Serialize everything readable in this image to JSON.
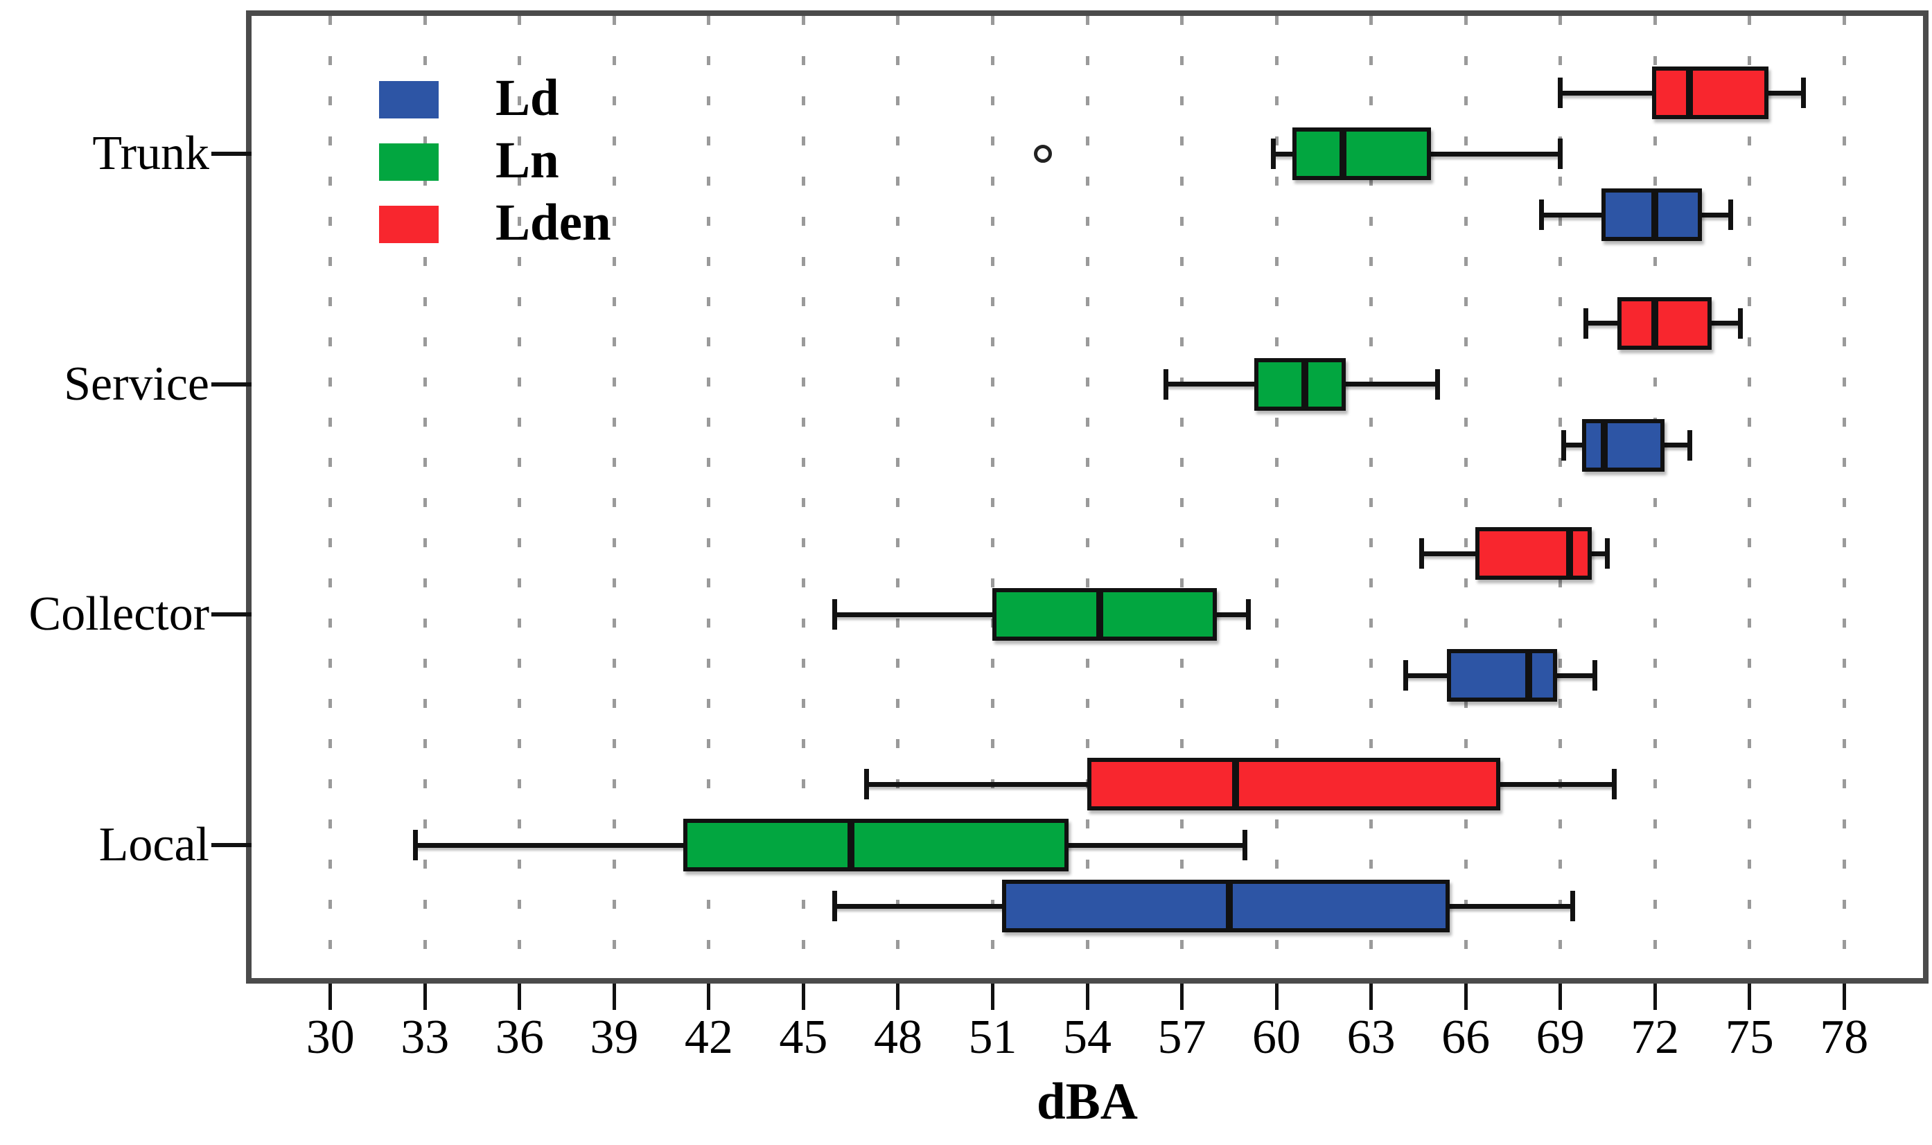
{
  "chart_data": {
    "type": "boxplot",
    "orientation": "horizontal",
    "title": "",
    "xlabel": "dBA",
    "x_ticks": [
      30,
      33,
      36,
      39,
      42,
      45,
      48,
      51,
      54,
      57,
      60,
      63,
      66,
      69,
      72,
      75,
      78
    ],
    "x_range_at_plot_edges": [
      27.5,
      80.5
    ],
    "grid": "vertical dashed gray lines at every tick",
    "legend_position": "top-left inside plot",
    "categories": [
      "Trunk",
      "Service",
      "Collector",
      "Local"
    ],
    "row_order_within_group_top_to_bottom": [
      "Lden",
      "Ln",
      "Ld"
    ],
    "legend": [
      {
        "label": "Ld",
        "color": "#2d55a5"
      },
      {
        "label": "Ln",
        "color": "#02a640"
      },
      {
        "label": "Lden",
        "color": "#f8262e"
      }
    ],
    "colors": {
      "Ld": "#2d55a5",
      "Ln": "#02a640",
      "Lden": "#f8262e",
      "box_border": "#111111",
      "grid": "#9a9a9a",
      "frame": "#4b4b4b"
    },
    "boxes": [
      {
        "category": "Trunk",
        "series": "Lden",
        "low": 69.0,
        "q1": 71.9,
        "median": 73.1,
        "q3": 75.6,
        "high": 76.7,
        "outliers": []
      },
      {
        "category": "Trunk",
        "series": "Ln",
        "low": 59.9,
        "q1": 60.5,
        "median": 62.1,
        "q3": 64.9,
        "high": 69.0,
        "outliers": [
          52.6
        ]
      },
      {
        "category": "Trunk",
        "series": "Ld",
        "low": 68.4,
        "q1": 70.3,
        "median": 72.0,
        "q3": 73.5,
        "high": 74.4,
        "outliers": []
      },
      {
        "category": "Service",
        "series": "Lden",
        "low": 69.8,
        "q1": 70.8,
        "median": 72.0,
        "q3": 73.8,
        "high": 74.7,
        "outliers": []
      },
      {
        "category": "Service",
        "series": "Ln",
        "low": 56.5,
        "q1": 59.3,
        "median": 60.9,
        "q3": 62.2,
        "high": 65.1,
        "outliers": []
      },
      {
        "category": "Service",
        "series": "Ld",
        "low": 69.1,
        "q1": 69.7,
        "median": 70.4,
        "q3": 72.3,
        "high": 73.1,
        "outliers": []
      },
      {
        "category": "Collector",
        "series": "Lden",
        "low": 64.6,
        "q1": 66.3,
        "median": 69.3,
        "q3": 70.0,
        "high": 70.5,
        "outliers": []
      },
      {
        "category": "Collector",
        "series": "Ln",
        "low": 46.0,
        "q1": 51.0,
        "median": 54.4,
        "q3": 58.1,
        "high": 59.1,
        "outliers": []
      },
      {
        "category": "Collector",
        "series": "Ld",
        "low": 64.1,
        "q1": 65.4,
        "median": 68.0,
        "q3": 68.9,
        "high": 70.1,
        "outliers": []
      },
      {
        "category": "Local",
        "series": "Lden",
        "low": 47.0,
        "q1": 54.0,
        "median": 58.7,
        "q3": 67.1,
        "high": 70.7,
        "outliers": []
      },
      {
        "category": "Local",
        "series": "Ln",
        "low": 32.7,
        "q1": 41.2,
        "median": 46.5,
        "q3": 53.4,
        "high": 59.0,
        "outliers": []
      },
      {
        "category": "Local",
        "series": "Ld",
        "low": 46.0,
        "q1": 51.3,
        "median": 58.5,
        "q3": 65.5,
        "high": 69.4,
        "outliers": []
      }
    ]
  }
}
